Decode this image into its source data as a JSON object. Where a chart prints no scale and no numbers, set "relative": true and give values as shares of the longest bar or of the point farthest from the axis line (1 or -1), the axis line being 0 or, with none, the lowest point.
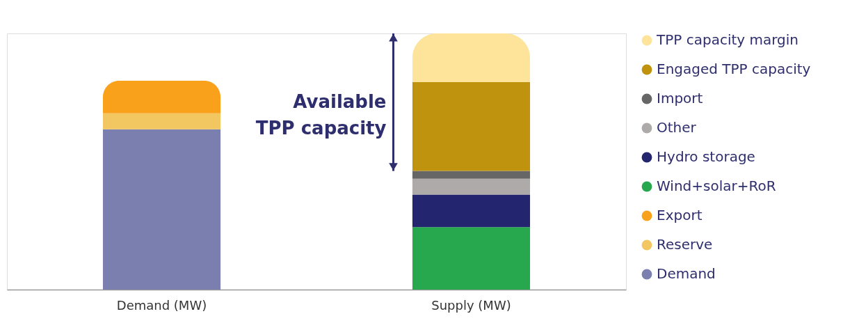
{
  "chart_data": {
    "type": "bar",
    "stacked": true,
    "relative": true,
    "legend": "right",
    "categories": [
      "Demand (MW)",
      "Supply (MW)"
    ],
    "series": [
      {
        "name": "Demand",
        "color": "#7b7fb0",
        "values": [
          0.626,
          null
        ]
      },
      {
        "name": "Reserve",
        "color": "#f2c661",
        "values": [
          0.062,
          null
        ]
      },
      {
        "name": "Export",
        "color": "#f9a11b",
        "values": [
          0.127,
          null
        ]
      },
      {
        "name": "Wind+solar+RoR",
        "color": "#27a84f",
        "values": [
          null,
          0.244
        ]
      },
      {
        "name": "Hydro storage",
        "color": "#23256e",
        "values": [
          null,
          0.127
        ]
      },
      {
        "name": "Other",
        "color": "#aeaaaa",
        "values": [
          null,
          0.062
        ]
      },
      {
        "name": "Import",
        "color": "#666666",
        "values": [
          null,
          0.03
        ]
      },
      {
        "name": "Engaged TPP capacity",
        "color": "#bf930d",
        "values": [
          null,
          0.347
        ]
      },
      {
        "name": "TPP capacity margin",
        "color": "#fde49a",
        "values": [
          null,
          0.19
        ]
      }
    ],
    "annotations": [
      "Available\nTPP capacity"
    ]
  }
}
